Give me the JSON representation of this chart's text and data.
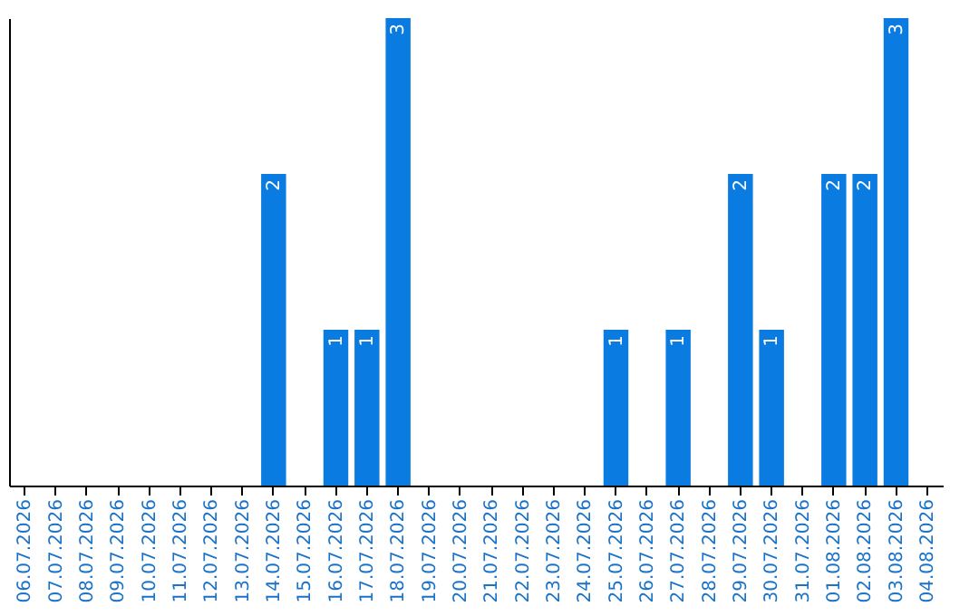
{
  "chart_data": {
    "type": "bar",
    "categories": [
      "06.07.2026",
      "07.07.2026",
      "08.07.2026",
      "09.07.2026",
      "10.07.2026",
      "11.07.2026",
      "12.07.2026",
      "13.07.2026",
      "14.07.2026",
      "15.07.2026",
      "16.07.2026",
      "17.07.2026",
      "18.07.2026",
      "19.07.2026",
      "20.07.2026",
      "21.07.2026",
      "22.07.2026",
      "23.07.2026",
      "24.07.2026",
      "25.07.2026",
      "26.07.2026",
      "27.07.2026",
      "28.07.2026",
      "29.07.2026",
      "30.07.2026",
      "31.07.2026",
      "01.08.2026",
      "02.08.2026",
      "03.08.2026",
      "04.08.2026"
    ],
    "values": [
      null,
      null,
      null,
      null,
      null,
      null,
      null,
      null,
      2,
      null,
      1,
      1,
      3,
      null,
      null,
      null,
      null,
      null,
      null,
      1,
      null,
      1,
      null,
      2,
      1,
      null,
      2,
      2,
      3,
      null
    ],
    "color": "#0a7be0",
    "ylim": [
      0,
      3
    ],
    "tick_labels": "x",
    "data_labels": true,
    "grid": false
  }
}
